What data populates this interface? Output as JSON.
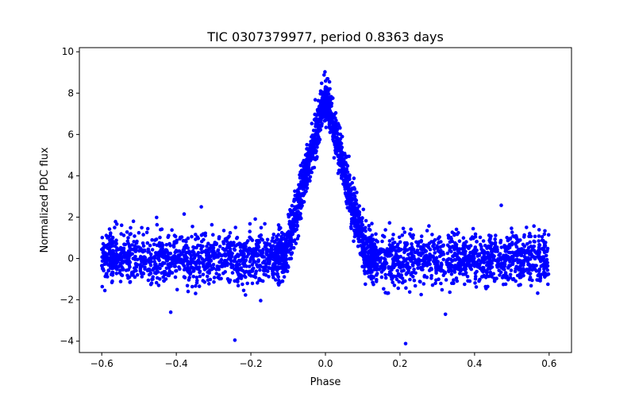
{
  "chart_data": {
    "type": "scatter",
    "title": "TIC 0307379977, period 0.8363 days",
    "xlabel": "Phase",
    "ylabel": "Normalized PDC flux",
    "xlim": [
      -0.66,
      0.66
    ],
    "ylim": [
      -4.55,
      10.2
    ],
    "xticks": [
      -0.6,
      -0.4,
      -0.2,
      0.0,
      0.2,
      0.4,
      0.6
    ],
    "xtick_labels": [
      "−0.6",
      "−0.4",
      "−0.2",
      "0.0",
      "0.2",
      "0.4",
      "0.6"
    ],
    "yticks": [
      -4,
      -2,
      0,
      2,
      4,
      6,
      8,
      10
    ],
    "ytick_labels": [
      "−4",
      "−2",
      "0",
      "2",
      "4",
      "6",
      "8",
      "10"
    ],
    "grid": false,
    "series": [
      {
        "name": "flux",
        "color": "#0000ff",
        "phase_range": [
          -0.6,
          0.6
        ],
        "baseline_flux": 0.0,
        "scatter_sigma": 0.6,
        "peak_phase": 0.0,
        "peak_flux": 7.8,
        "peak_max": 9.5,
        "peak_halfwidth_phase": 0.11,
        "outliers": [
          {
            "x": -0.243,
            "y": -3.95
          },
          {
            "x": 0.215,
            "y": -4.12
          },
          {
            "x": -0.333,
            "y": 2.5
          },
          {
            "x": -0.415,
            "y": -2.6
          },
          {
            "x": 0.322,
            "y": -2.7
          },
          {
            "x": -0.515,
            "y": 1.8
          }
        ]
      }
    ]
  }
}
